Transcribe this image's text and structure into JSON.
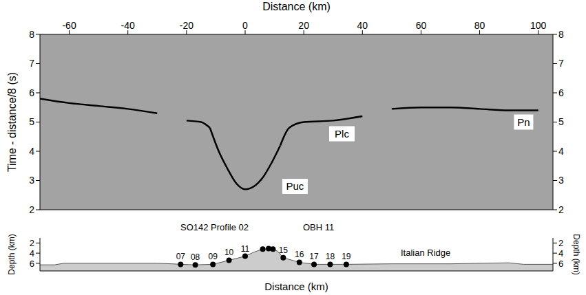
{
  "chart_data": [
    {
      "type": "line",
      "x_label": "Distance (km)",
      "y_label": "Time - distance/8 (s)",
      "grid": false,
      "x": [
        -70,
        -60,
        -50,
        -40,
        -30,
        -20,
        -15,
        -12,
        -9,
        -6,
        -3,
        0,
        3,
        6,
        9,
        12,
        15,
        20,
        30,
        40,
        50,
        60,
        70,
        80,
        90,
        100
      ],
      "series": [
        {
          "name": "Puc",
          "color": "#000000",
          "values": [
            null,
            null,
            null,
            null,
            null,
            null,
            null,
            4.8,
            4.0,
            3.4,
            2.9,
            2.7,
            2.8,
            3.1,
            3.6,
            4.2,
            null,
            null,
            null,
            null,
            null,
            null,
            null,
            null,
            null,
            null
          ],
          "annotation": {
            "x": 17,
            "y": 2.8
          }
        },
        {
          "name": "Plc",
          "color": "#000000",
          "values": [
            null,
            null,
            null,
            null,
            null,
            5.05,
            5.0,
            4.8,
            null,
            null,
            null,
            null,
            null,
            null,
            null,
            4.2,
            4.8,
            5.0,
            5.05,
            5.2,
            null,
            null,
            null,
            null,
            null,
            null
          ],
          "annotation": {
            "x": 33,
            "y": 4.6
          }
        },
        {
          "name": "Pn",
          "color": "#000000",
          "values": [
            5.8,
            5.65,
            5.55,
            5.45,
            5.3,
            null,
            null,
            null,
            null,
            null,
            null,
            null,
            null,
            null,
            null,
            null,
            null,
            null,
            null,
            null,
            5.45,
            5.5,
            5.5,
            5.45,
            5.4,
            5.4
          ],
          "annotation": {
            "x": 95,
            "y": 5.0
          }
        }
      ],
      "xlim": [
        -70,
        105
      ],
      "xticks": [
        -60,
        -40,
        -20,
        0,
        20,
        40,
        60,
        80,
        100
      ],
      "ylim": [
        2,
        8
      ],
      "yticks": [
        2,
        3,
        4,
        5,
        6,
        7,
        8
      ]
    },
    {
      "type": "area",
      "title": "SO142 Profile 02",
      "annotations": [
        "OBH 11",
        "Italian Ridge"
      ],
      "x_label": "Distance (km)",
      "y_label": "Depth (km)",
      "tick_labels": "y",
      "x": [
        -70,
        -65,
        -62,
        -30,
        -25,
        -22,
        -17,
        -11,
        -5.5,
        0,
        3,
        6,
        8,
        9.5,
        11,
        13,
        18.5,
        23.5,
        29,
        34.5,
        50,
        70,
        90,
        95,
        105
      ],
      "values": [
        6.3,
        6.3,
        6.0,
        6.0,
        6.1,
        6.2,
        6.3,
        6.2,
        5.4,
        4.6,
        3.8,
        3.2,
        3.1,
        3.2,
        3.6,
        4.9,
        5.8,
        6.2,
        6.2,
        6.2,
        6.1,
        6.1,
        5.9,
        6.2,
        6.2
      ],
      "color": "#cccccc",
      "stations": {
        "labels": [
          "07",
          "08",
          "09",
          "10",
          "11",
          null,
          null,
          null,
          "15",
          "16",
          "17",
          "18",
          "19"
        ],
        "x": [
          -22,
          -17,
          -11,
          -5.5,
          0,
          6,
          8,
          9.5,
          13,
          18.5,
          23.5,
          29,
          34.5
        ],
        "depth": [
          6.2,
          6.3,
          6.2,
          5.4,
          4.6,
          3.2,
          3.1,
          3.2,
          4.9,
          5.8,
          6.2,
          6.2,
          6.2
        ]
      },
      "marker": "circle",
      "xlim": [
        -70,
        105
      ],
      "ylim": [
        1,
        7.5
      ],
      "yticks": [
        2,
        4,
        6
      ]
    }
  ]
}
